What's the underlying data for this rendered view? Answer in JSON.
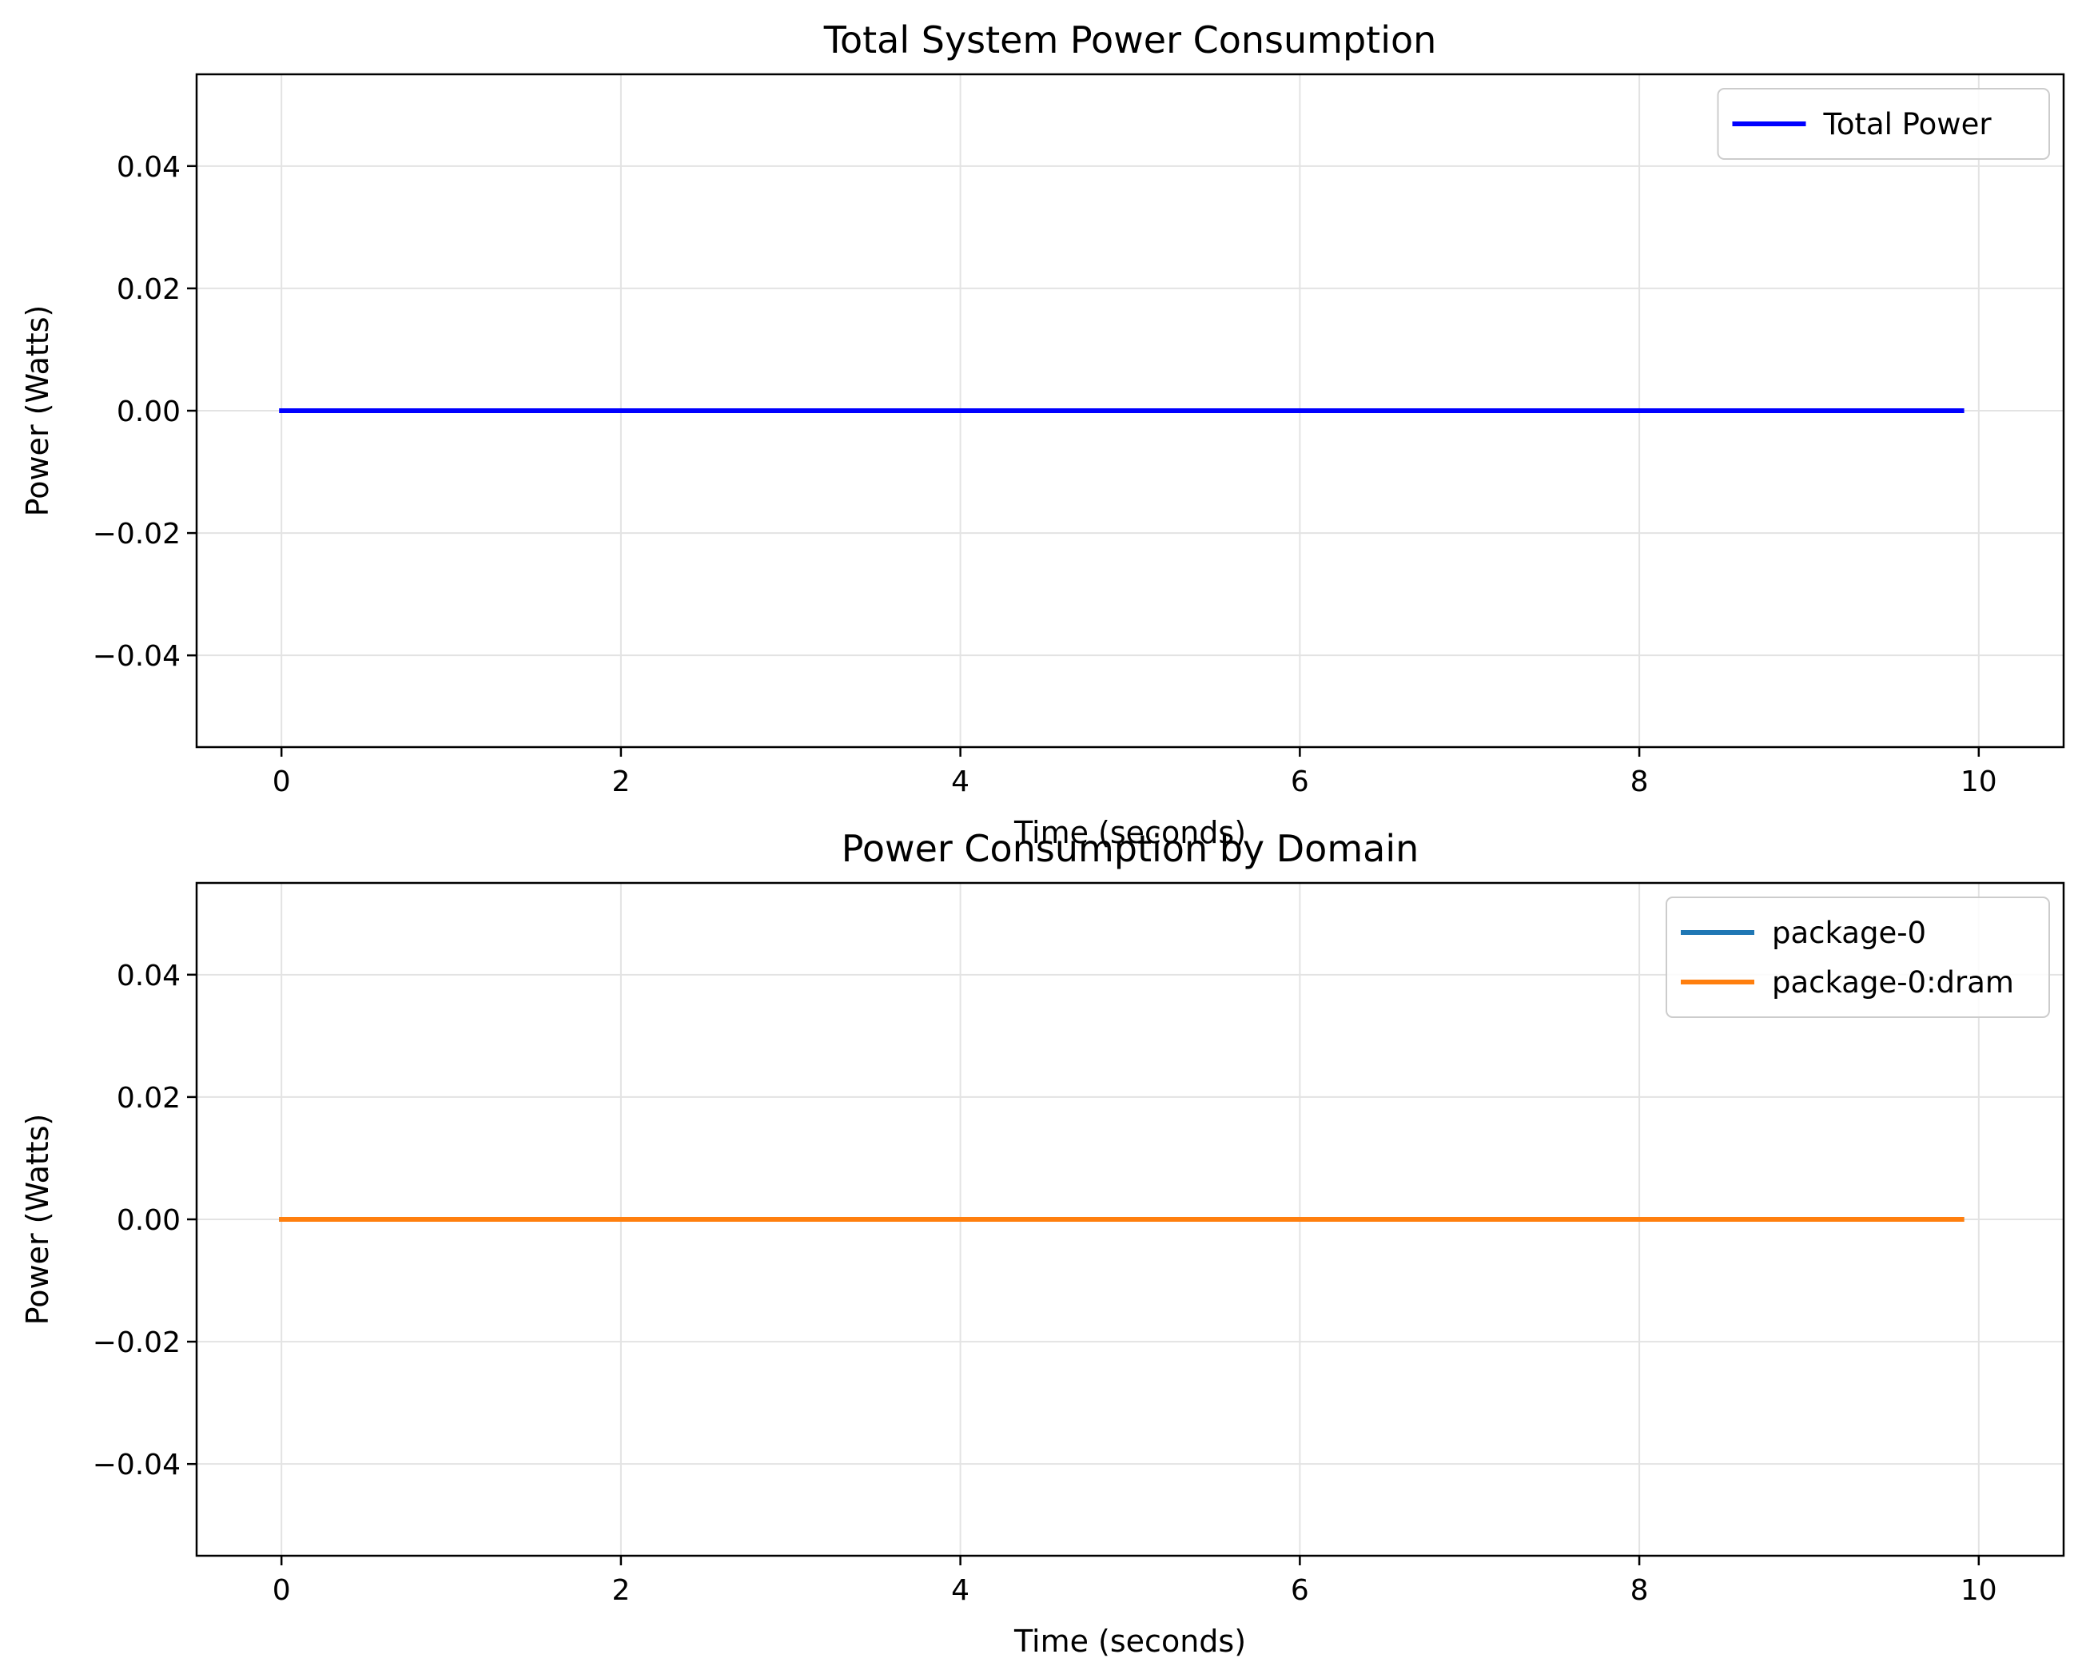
{
  "chart_data": [
    {
      "type": "line",
      "title": "Total System Power Consumption",
      "xlabel": "Time (seconds)",
      "ylabel": "Power (Watts)",
      "xlim": [
        -0.5,
        10.5
      ],
      "ylim": [
        -0.055,
        0.055
      ],
      "xticks": [
        0,
        2,
        4,
        6,
        8,
        10
      ],
      "xtick_labels": [
        "0",
        "2",
        "4",
        "6",
        "8",
        "10"
      ],
      "yticks": [
        0.04,
        0.02,
        0.0,
        -0.02,
        -0.04
      ],
      "ytick_labels": [
        "0.04",
        "0.02",
        "0.00",
        "−0.02",
        "−0.04"
      ],
      "grid": true,
      "legend_position": "top-right",
      "series": [
        {
          "name": "Total Power",
          "color": "#0000ff",
          "x": [
            0,
            9.9
          ],
          "y": [
            0,
            0
          ]
        }
      ]
    },
    {
      "type": "line",
      "title": "Power Consumption by Domain",
      "xlabel": "Time (seconds)",
      "ylabel": "Power (Watts)",
      "xlim": [
        -0.5,
        10.5
      ],
      "ylim": [
        -0.055,
        0.055
      ],
      "xticks": [
        0,
        2,
        4,
        6,
        8,
        10
      ],
      "xtick_labels": [
        "0",
        "2",
        "4",
        "6",
        "8",
        "10"
      ],
      "yticks": [
        0.04,
        0.02,
        0.0,
        -0.02,
        -0.04
      ],
      "ytick_labels": [
        "0.04",
        "0.02",
        "0.00",
        "−0.02",
        "−0.04"
      ],
      "grid": true,
      "legend_position": "top-right",
      "series": [
        {
          "name": "package-0",
          "color": "#1f77b4",
          "x": [
            0,
            9.9
          ],
          "y": [
            0,
            0
          ]
        },
        {
          "name": "package-0:dram",
          "color": "#ff7f0e",
          "x": [
            0,
            9.9
          ],
          "y": [
            0,
            0
          ]
        }
      ]
    }
  ]
}
